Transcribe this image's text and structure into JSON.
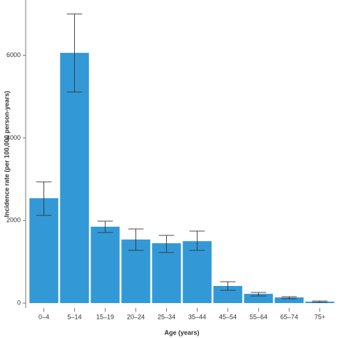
{
  "chart_data": {
    "type": "bar",
    "x_label": "Age (years)",
    "y_label": "Incidence rate (per 100,000 person-years)",
    "categories": [
      "0–4",
      "5–14",
      "15–19",
      "20–24",
      "25–34",
      "35–44",
      "45–54",
      "55–64",
      "65–74",
      "75+"
    ],
    "values": [
      2540,
      6060,
      1850,
      1540,
      1450,
      1500,
      415,
      225,
      138,
      35
    ],
    "error_low": [
      2124,
      5112,
      1710,
      1278,
      1226,
      1278,
      311,
      173,
      104,
      17
    ],
    "error_high": [
      2936,
      7000,
      1986,
      1796,
      1641,
      1744,
      518,
      259,
      155,
      52
    ],
    "color": "#3399d6",
    "ylim": [
      -120,
      7340
    ],
    "yticks": [
      0,
      2000,
      4000,
      6000
    ]
  }
}
